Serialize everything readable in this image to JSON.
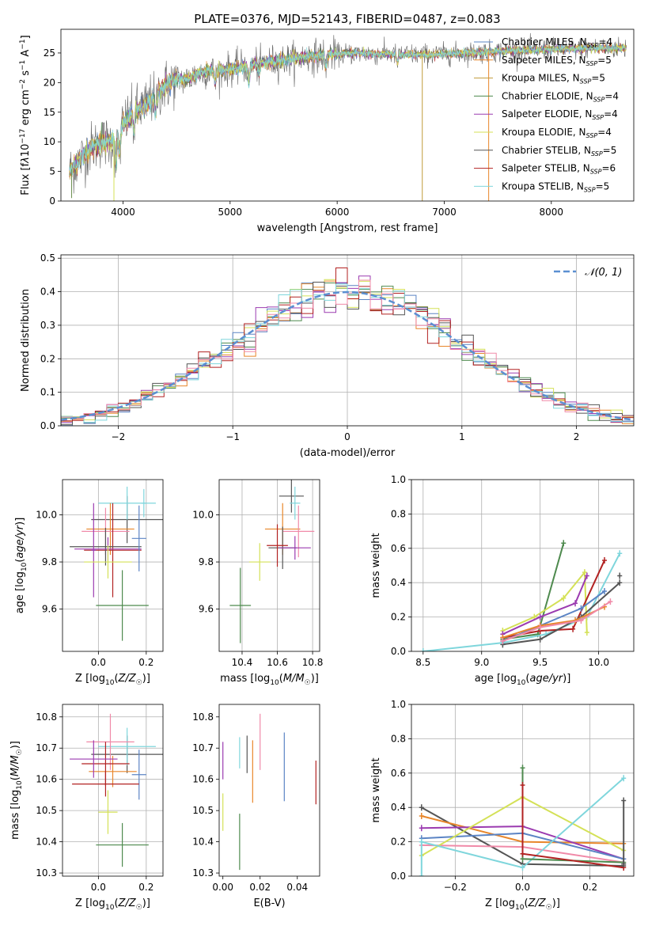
{
  "chart_data": [
    {
      "type": "line",
      "title": "PLATE=0376, MJD=52143, FIBERID=0487, z=0.083",
      "xlabel": "wavelength [Angstrom, rest frame]",
      "ylabel_parts": [
        "Flux [f",
        "λ",
        "10",
        "−17",
        " erg cm",
        "−2",
        " s",
        "−1",
        " A",
        "−1",
        "]"
      ],
      "xlim": [
        3420,
        8770
      ],
      "ylim": [
        0,
        29
      ],
      "x_ticks": [
        4000,
        5000,
        6000,
        7000,
        8000
      ],
      "x_tick_labels": [
        "4000",
        "5000",
        "6000",
        "7000",
        "8000"
      ],
      "y_ticks": [
        0,
        5,
        10,
        15,
        20,
        25
      ],
      "y_tick_labels": [
        "0",
        "5",
        "10",
        "15",
        "20",
        "25"
      ],
      "grid": false,
      "legend_position": "right",
      "continuum": {
        "x": [
          3500,
          3600,
          3700,
          3800,
          3900,
          3950,
          4000,
          4100,
          4200,
          4300,
          4400,
          4500,
          4600,
          4700,
          4800,
          4900,
          5000,
          5100,
          5200,
          5300,
          5400,
          5500,
          5600,
          5700,
          5800,
          5900,
          6000,
          6200,
          6400,
          6600,
          6800,
          7000,
          7200,
          7400,
          7600,
          7800,
          8000,
          8200,
          8400
        ],
        "y": [
          5,
          7,
          9,
          10,
          10,
          11,
          13,
          15,
          16,
          18,
          19.5,
          20.5,
          20.5,
          21.5,
          22,
          22,
          22.3,
          22.5,
          23,
          23.3,
          23.5,
          23.8,
          24,
          24.3,
          24.5,
          24.7,
          24.8,
          25,
          24.8,
          24.8,
          24.7,
          24.8,
          25,
          25.2,
          25.4,
          25.5,
          25.6,
          25.7,
          25.8
        ]
      },
      "absorption_features": [
        {
          "x": 3934,
          "depth": 4
        },
        {
          "x": 3969,
          "depth": 3.5
        },
        {
          "x": 4102,
          "depth": 3
        },
        {
          "x": 4304,
          "depth": 3.5
        },
        {
          "x": 4861,
          "depth": 2
        },
        {
          "x": 5175,
          "depth": 3
        },
        {
          "x": 5270,
          "depth": 1.5
        },
        {
          "x": 5893,
          "depth": 2
        },
        {
          "x": 6563,
          "depth": 1.5
        }
      ],
      "vertical_spikes": [
        {
          "x": 3520,
          "y_bottom": 0.5,
          "color": "#6b8e4e"
        },
        {
          "x": 3915,
          "y_bottom": 0,
          "color": "#d4e157"
        },
        {
          "x": 6795,
          "y_bottom": 0,
          "color": "#c09b3a"
        },
        {
          "x": 7415,
          "y_bottom": 0,
          "color": "#e8862a"
        }
      ],
      "legend": [
        {
          "name": "Chabrier MILES",
          "n": "4",
          "color": "#5b84c4"
        },
        {
          "name": "Salpeter MILES",
          "n": "5",
          "color": "#e8862a"
        },
        {
          "name": "Kroupa MILES",
          "n": "5",
          "color": "#c09b3a"
        },
        {
          "name": "Chabrier ELODIE",
          "n": "4",
          "color": "#4e8a4e"
        },
        {
          "name": "Salpeter ELODIE",
          "n": "4",
          "color": "#9b3bb0"
        },
        {
          "name": "Kroupa ELODIE",
          "n": "4",
          "color": "#d4e157"
        },
        {
          "name": "Chabrier STELIB",
          "n": "5",
          "color": "#555555"
        },
        {
          "name": "Salpeter STELIB",
          "n": "6",
          "color": "#b22222"
        },
        {
          "name": "Kroupa STELIB",
          "n": "5",
          "color": "#7fd6dc"
        }
      ],
      "legend_subscript": "SSP"
    },
    {
      "type": "histogram",
      "xlabel": "(data-model)/error",
      "ylabel": "Normed distribution",
      "xlim": [
        -2.5,
        2.5
      ],
      "ylim": [
        0,
        0.51
      ],
      "x_ticks": [
        -2,
        -1,
        0,
        1,
        2
      ],
      "x_tick_labels": [
        "−2",
        "−1",
        "0",
        "1",
        "2"
      ],
      "y_ticks": [
        0,
        0.1,
        0.2,
        0.3,
        0.4,
        0.5
      ],
      "y_tick_labels": [
        "0.0",
        "0.1",
        "0.2",
        "0.3",
        "0.4",
        "0.5"
      ],
      "grid": true,
      "bin_width": 0.1,
      "series_colors": [
        "#5b84c4",
        "#e8862a",
        "#4e8a4e",
        "#9b3bb0",
        "#d4e157",
        "#555555",
        "#b22222",
        "#7fd6dc",
        "#f08aa8"
      ],
      "reference": {
        "name": "𝒩(0, 1)",
        "mean": 0,
        "sigma": 1,
        "color": "#5b8fd1"
      },
      "legend_position": "top-right"
    },
    {
      "type": "scatter",
      "xlabel": "Z [log10(Z/Z☉)]",
      "xlabel_parts": [
        "Z [log",
        "10",
        "(",
        "Z/Z",
        "☉",
        ")]"
      ],
      "ylabel_parts": [
        "age  [log",
        "10",
        "(",
        "age/yr",
        ")]"
      ],
      "xlim": [
        -0.15,
        0.27
      ],
      "ylim": [
        9.42,
        10.15
      ],
      "x_ticks": [
        0,
        0.2
      ],
      "x_tick_labels": [
        "0.0",
        "0.2"
      ],
      "y_ticks": [
        9.6,
        9.8,
        10
      ],
      "y_tick_labels": [
        "9.6",
        "9.8",
        "10.0"
      ],
      "grid": true,
      "points": [
        {
          "x": 0.12,
          "y": 9.98,
          "xerr": 0.15,
          "yerr": 0.1,
          "color": "#555555"
        },
        {
          "x": 0.12,
          "y": 10.05,
          "xerr": 0.12,
          "yerr": 0.07,
          "color": "#7fd6dc"
        },
        {
          "x": 0.19,
          "y": 10.05,
          "xerr": 0.01,
          "yerr": 0.06,
          "color": "#7fd6dc"
        },
        {
          "x": 0.05,
          "y": 9.94,
          "xerr": 0.1,
          "yerr": 0.11,
          "color": "#e8862a"
        },
        {
          "x": 0.03,
          "y": 9.93,
          "xerr": 0.1,
          "yerr": 0.1,
          "color": "#f08aa8"
        },
        {
          "x": 0.06,
          "y": 9.85,
          "xerr": 0.12,
          "yerr": 0.2,
          "color": "#b22222"
        },
        {
          "x": 0.03,
          "y": 9.865,
          "xerr": 0.15,
          "yerr": 0.08,
          "color": "#555555"
        },
        {
          "x": 0.04,
          "y": 9.855,
          "xerr": 0.14,
          "yerr": 0.05,
          "color": "#9b3bb0"
        },
        {
          "x": -0.02,
          "y": 9.85,
          "xerr": 0.01,
          "yerr": 0.2,
          "color": "#9b3bb0"
        },
        {
          "x": 0.04,
          "y": 9.8,
          "xerr": 0.1,
          "yerr": 0.07,
          "color": "#d4e157"
        },
        {
          "x": 0.17,
          "y": 9.9,
          "xerr": 0.03,
          "yerr": 0.14,
          "color": "#5b84c4"
        },
        {
          "x": 0.1,
          "y": 9.615,
          "xerr": 0.11,
          "yerr": 0.15,
          "color": "#4e8a4e"
        }
      ]
    },
    {
      "type": "scatter",
      "xlabel_parts": [
        "mass [log",
        "10",
        "(",
        "M/M",
        "☉",
        ")]"
      ],
      "xlim": [
        10.27,
        10.84
      ],
      "ylim": [
        9.42,
        10.15
      ],
      "x_ticks": [
        10.4,
        10.6,
        10.8
      ],
      "x_tick_labels": [
        "10.4",
        "10.6",
        "10.8"
      ],
      "y_ticks": [
        9.6,
        9.8,
        10
      ],
      "y_tick_labels": [
        "9.6",
        "9.8",
        "10.0"
      ],
      "grid": true,
      "points": [
        {
          "x": 10.68,
          "y": 10.08,
          "xerr": 0.07,
          "yerr": 0.07,
          "color": "#555555"
        },
        {
          "x": 10.7,
          "y": 10.05,
          "xerr": 0.03,
          "yerr": 0.07,
          "color": "#7fd6dc"
        },
        {
          "x": 10.63,
          "y": 9.94,
          "xerr": 0.1,
          "yerr": 0.11,
          "color": "#e8862a"
        },
        {
          "x": 10.72,
          "y": 9.93,
          "xerr": 0.09,
          "yerr": 0.11,
          "color": "#f08aa8"
        },
        {
          "x": 10.63,
          "y": 9.86,
          "xerr": 0.08,
          "yerr": 0.09,
          "color": "#555555"
        },
        {
          "x": 10.6,
          "y": 9.87,
          "xerr": 0.06,
          "yerr": 0.09,
          "color": "#b22222"
        },
        {
          "x": 10.7,
          "y": 9.86,
          "xerr": 0.09,
          "yerr": 0.05,
          "color": "#9b3bb0"
        },
        {
          "x": 10.5,
          "y": 9.8,
          "xerr": 0.06,
          "yerr": 0.08,
          "color": "#d4e157"
        },
        {
          "x": 10.39,
          "y": 9.615,
          "xerr": 0.06,
          "yerr": 0.16,
          "color": "#4e8a4e"
        }
      ]
    },
    {
      "type": "line",
      "xlabel_parts": [
        "age  [log",
        "10",
        "(",
        "age/yr",
        ")]"
      ],
      "ylabel": "mass weight",
      "xlim": [
        8.4,
        10.3
      ],
      "ylim": [
        0,
        1
      ],
      "x_ticks": [
        8.5,
        9,
        9.5,
        10
      ],
      "x_tick_labels": [
        "8.5",
        "9.0",
        "9.5",
        "10.0"
      ],
      "y_ticks": [
        0,
        0.2,
        0.4,
        0.6,
        0.8,
        1
      ],
      "y_tick_labels": [
        "0.0",
        "0.2",
        "0.4",
        "0.6",
        "0.8",
        "1.0"
      ],
      "grid": true,
      "series": [
        {
          "color": "#4e8a4e",
          "x": [
            9.18,
            9.48,
            9.7
          ],
          "y": [
            0.07,
            0.1,
            0.63
          ]
        },
        {
          "color": "#7fd6dc",
          "x": [
            8.5,
            9.18,
            9.55,
            9.9,
            10.18
          ],
          "y": [
            0,
            0.05,
            0.1,
            0.2,
            0.57
          ]
        },
        {
          "color": "#d4e157",
          "x": [
            9.18,
            9.45,
            9.7,
            9.88,
            9.9
          ],
          "y": [
            0.12,
            0.2,
            0.31,
            0.46,
            0.11
          ]
        },
        {
          "color": "#b22222",
          "x": [
            9.18,
            9.5,
            9.78,
            10.05
          ],
          "y": [
            0.08,
            0.12,
            0.13,
            0.53
          ]
        },
        {
          "color": "#9b3bb0",
          "x": [
            9.18,
            9.5,
            9.8,
            9.9
          ],
          "y": [
            0.1,
            0.2,
            0.28,
            0.44
          ]
        },
        {
          "color": "#555555",
          "x": [
            9.18,
            9.5,
            9.85,
            10.18
          ],
          "y": [
            0.04,
            0.07,
            0.2,
            0.4
          ]
        },
        {
          "color": "#5b84c4",
          "x": [
            9.18,
            9.5,
            9.85,
            10.05
          ],
          "y": [
            0.06,
            0.15,
            0.25,
            0.35
          ]
        },
        {
          "color": "#e8862a",
          "x": [
            9.18,
            9.5,
            9.8,
            10.05
          ],
          "y": [
            0.08,
            0.15,
            0.18,
            0.26
          ]
        },
        {
          "color": "#f08aa8",
          "x": [
            9.18,
            9.5,
            9.85,
            10.1
          ],
          "y": [
            0.06,
            0.14,
            0.18,
            0.29
          ]
        },
        {
          "color": "#555555",
          "x": [
            10.18
          ],
          "y": [
            0.44
          ]
        }
      ]
    },
    {
      "type": "scatter",
      "xlabel_parts": [
        "Z [log",
        "10",
        "(",
        "Z/Z",
        "☉",
        ")]"
      ],
      "ylabel_parts": [
        "mass [log",
        "10",
        "(",
        "M/M",
        "☉",
        ")]"
      ],
      "xlim": [
        -0.15,
        0.27
      ],
      "ylim": [
        10.29,
        10.84
      ],
      "x_ticks": [
        0,
        0.2
      ],
      "x_tick_labels": [
        "0.0",
        "0.2"
      ],
      "y_ticks": [
        10.3,
        10.4,
        10.5,
        10.6,
        10.7,
        10.8
      ],
      "y_tick_labels": [
        "10.3",
        "10.4",
        "10.5",
        "10.6",
        "10.7",
        "10.8"
      ],
      "grid": true,
      "points": [
        {
          "x": 0.12,
          "y": 10.68,
          "xerr": 0.15,
          "yerr": 0.06,
          "color": "#555555"
        },
        {
          "x": 0.12,
          "y": 10.705,
          "xerr": 0.12,
          "yerr": 0.06,
          "color": "#7fd6dc"
        },
        {
          "x": 0.05,
          "y": 10.72,
          "xerr": 0.1,
          "yerr": 0.09,
          "color": "#f08aa8"
        },
        {
          "x": 0.06,
          "y": 10.625,
          "xerr": 0.1,
          "yerr": 0.05,
          "color": "#e8862a"
        },
        {
          "x": 0.03,
          "y": 10.65,
          "xerr": 0.1,
          "yerr": 0.07,
          "color": "#b22222"
        },
        {
          "x": -0.02,
          "y": 10.665,
          "xerr": 0.1,
          "yerr": 0.06,
          "color": "#9b3bb0"
        },
        {
          "x": 0.17,
          "y": 10.615,
          "xerr": 0.03,
          "yerr": 0.08,
          "color": "#5b84c4"
        },
        {
          "x": 0.03,
          "y": 10.585,
          "xerr": 0.14,
          "yerr": 0.04,
          "color": "#b22222"
        },
        {
          "x": 0.04,
          "y": 10.495,
          "xerr": 0.04,
          "yerr": 0.07,
          "color": "#d4e157"
        },
        {
          "x": 0.1,
          "y": 10.39,
          "xerr": 0.11,
          "yerr": 0.07,
          "color": "#4e8a4e"
        }
      ]
    },
    {
      "type": "scatter",
      "xlabel": "E(B-V)",
      "xlim": [
        -0.002,
        0.052
      ],
      "ylim": [
        10.29,
        10.84
      ],
      "x_ticks": [
        0,
        0.02,
        0.04
      ],
      "x_tick_labels": [
        "0.00",
        "0.02",
        "0.04"
      ],
      "y_ticks": [
        10.3,
        10.4,
        10.5,
        10.6,
        10.7,
        10.8
      ],
      "y_tick_labels": [
        "10.3",
        "10.4",
        "10.5",
        "10.6",
        "10.7",
        "10.8"
      ],
      "grid": false,
      "points": [
        {
          "x": 0.0,
          "y": 10.66,
          "yerr": 0.06,
          "color": "#9b3bb0"
        },
        {
          "x": 0.0,
          "y": 10.495,
          "yerr": 0.06,
          "color": "#d4e157"
        },
        {
          "x": 0.009,
          "y": 10.685,
          "yerr": 0.05,
          "color": "#7fd6dc"
        },
        {
          "x": 0.009,
          "y": 10.4,
          "yerr": 0.09,
          "color": "#4e8a4e"
        },
        {
          "x": 0.013,
          "y": 10.68,
          "yerr": 0.06,
          "color": "#555555"
        },
        {
          "x": 0.016,
          "y": 10.625,
          "yerr": 0.1,
          "color": "#e8862a"
        },
        {
          "x": 0.02,
          "y": 10.72,
          "yerr": 0.09,
          "color": "#f08aa8"
        },
        {
          "x": 0.033,
          "y": 10.64,
          "yerr": 0.11,
          "color": "#5b84c4"
        },
        {
          "x": 0.05,
          "y": 10.59,
          "yerr": 0.07,
          "color": "#b22222"
        }
      ]
    },
    {
      "type": "line",
      "xlabel_parts": [
        "Z [log",
        "10",
        "(",
        "Z/Z",
        "☉",
        ")]"
      ],
      "ylabel": "mass weight",
      "xlim": [
        -0.33,
        0.33
      ],
      "ylim": [
        0,
        1
      ],
      "x_ticks": [
        -0.2,
        0,
        0.2
      ],
      "x_tick_labels": [
        "−0.2",
        "0.0",
        "0.2"
      ],
      "y_ticks": [
        0,
        0.2,
        0.4,
        0.6,
        0.8,
        1
      ],
      "y_tick_labels": [
        "0.0",
        "0.2",
        "0.4",
        "0.6",
        "0.8",
        "1.0"
      ],
      "grid": true,
      "series": [
        {
          "color": "#555555",
          "x": [
            -0.3,
            0,
            0.3
          ],
          "y": [
            0.4,
            0.07,
            0.06
          ]
        },
        {
          "color": "#e8862a",
          "x": [
            -0.3,
            0,
            0.3
          ],
          "y": [
            0.35,
            0.2,
            0.19
          ]
        },
        {
          "color": "#9b3bb0",
          "x": [
            -0.3,
            0,
            0.3
          ],
          "y": [
            0.28,
            0.29,
            0.1
          ]
        },
        {
          "color": "#5b84c4",
          "x": [
            -0.3,
            0,
            0.3
          ],
          "y": [
            0.22,
            0.25,
            0.1
          ]
        },
        {
          "color": "#f08aa8",
          "x": [
            -0.3,
            0,
            0.3
          ],
          "y": [
            0.18,
            0.17,
            0.08
          ]
        },
        {
          "color": "#d4e157",
          "x": [
            -0.3,
            0,
            0.3
          ],
          "y": [
            0.12,
            0.46,
            0.15
          ]
        },
        {
          "color": "#7fd6dc",
          "x": [
            -0.3,
            -0.3,
            0,
            0.3
          ],
          "y": [
            0.0,
            0.2,
            0.05,
            0.57
          ]
        },
        {
          "color": "#4e8a4e",
          "x": [
            0,
            0,
            0.3
          ],
          "y": [
            0.63,
            0.1,
            0.08
          ]
        },
        {
          "color": "#b22222",
          "x": [
            0,
            0,
            0.3
          ],
          "y": [
            0.53,
            0.13,
            0.05
          ]
        },
        {
          "color": "#555555",
          "x": [
            0.3,
            0.3
          ],
          "y": [
            0.44,
            0.07
          ]
        }
      ]
    }
  ]
}
